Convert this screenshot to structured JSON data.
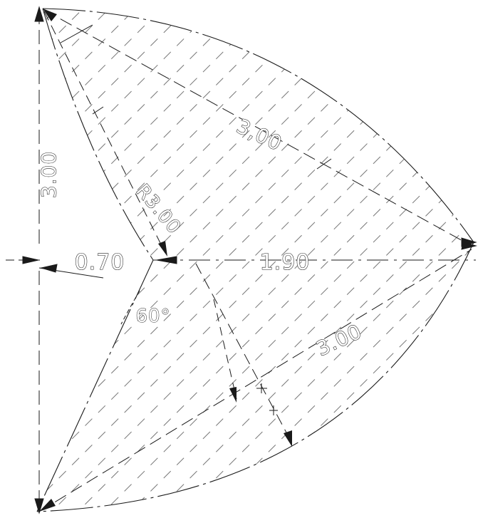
{
  "drawing": {
    "dimensions": {
      "left_height": "3.00",
      "offset": "0.70",
      "inner_radius": "R3.00",
      "top_arc": "3,00",
      "width": "1.90",
      "bottom_arc": "3.00",
      "angle": "60°"
    },
    "colors": {
      "line": "#1a1a1a",
      "hatch": "#555555",
      "background": "#ffffff"
    }
  }
}
